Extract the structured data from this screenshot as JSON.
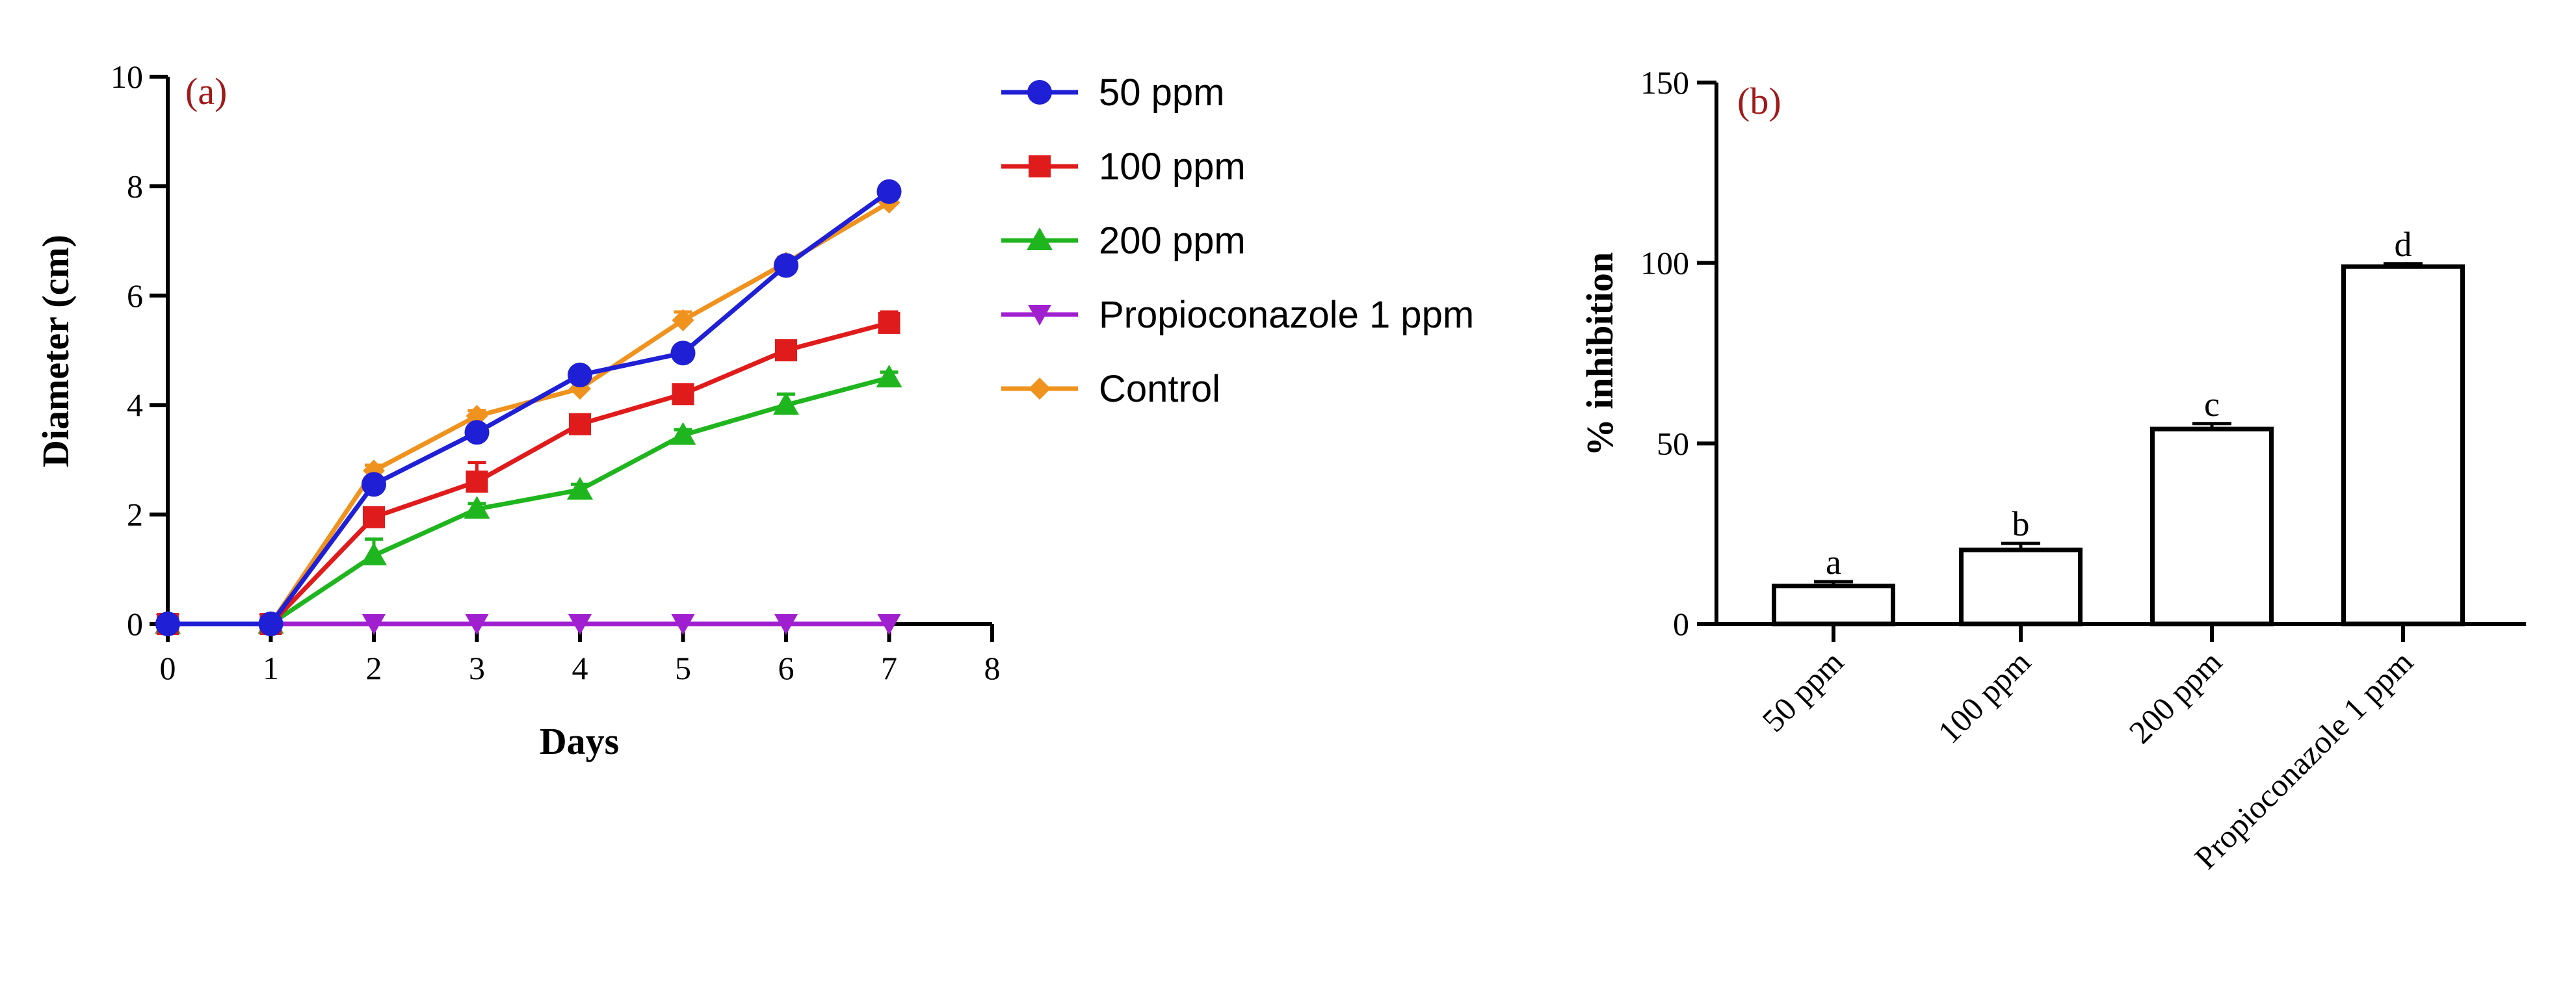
{
  "chart_data": [
    {
      "type": "line",
      "panel_label": "(a)",
      "xlabel": "Days",
      "ylabel": "Diameter (cm)",
      "xlim": [
        0,
        8
      ],
      "ylim": [
        0,
        10
      ],
      "xticks": [
        "0",
        "1",
        "2",
        "3",
        "4",
        "5",
        "6",
        "7",
        "8"
      ],
      "yticks": [
        "0",
        "2",
        "4",
        "6",
        "8",
        "10"
      ],
      "x": [
        0,
        1,
        2,
        3,
        4,
        5,
        6,
        7
      ],
      "series": [
        {
          "name": "50 ppm",
          "color": "#1f1fd6",
          "marker": "circle",
          "values": [
            0,
            0,
            2.55,
            3.5,
            4.55,
            4.95,
            6.55,
            7.9
          ],
          "errors": [
            0,
            0,
            0.1,
            0.1,
            0.1,
            0.1,
            0.1,
            0.1
          ]
        },
        {
          "name": "100 ppm",
          "color": "#e01b1b",
          "marker": "square",
          "values": [
            0,
            0,
            1.95,
            2.6,
            3.65,
            4.2,
            5.0,
            5.5
          ],
          "errors": [
            0,
            0,
            0.12,
            0.35,
            0.15,
            0.1,
            0.12,
            0.2
          ]
        },
        {
          "name": "200 ppm",
          "color": "#1fb51f",
          "marker": "triangle-up",
          "values": [
            0,
            0,
            1.25,
            2.1,
            2.45,
            3.45,
            4.0,
            4.5
          ],
          "errors": [
            0,
            0,
            0.3,
            0.1,
            0.1,
            0.1,
            0.2,
            0.1
          ]
        },
        {
          "name": "Propioconazole 1 ppm",
          "color": "#a020d0",
          "marker": "triangle-down",
          "values": [
            0,
            0,
            0,
            0,
            0,
            0,
            0,
            0
          ],
          "errors": [
            0,
            0,
            0,
            0,
            0,
            0,
            0,
            0
          ]
        },
        {
          "name": "Control",
          "color": "#f0921e",
          "marker": "diamond",
          "values": [
            0,
            0,
            2.8,
            3.8,
            4.3,
            5.55,
            6.6,
            7.7
          ],
          "errors": [
            0,
            0,
            0.1,
            0.1,
            0.2,
            0.15,
            0.1,
            0.15
          ]
        }
      ]
    },
    {
      "type": "bar",
      "panel_label": "(b)",
      "xlabel": "",
      "ylabel": "% inhibition",
      "ylim": [
        0,
        150
      ],
      "yticks": [
        "0",
        "50",
        "100",
        "150"
      ],
      "categories": [
        "50 ppm",
        "100 ppm",
        "200 ppm",
        "Propioconazole 1 ppm"
      ],
      "values": [
        10.5,
        20.5,
        54,
        99
      ],
      "errors": [
        1.2,
        1.8,
        1.5,
        0.8
      ],
      "letters": [
        "a",
        "b",
        "c",
        "d"
      ]
    }
  ]
}
